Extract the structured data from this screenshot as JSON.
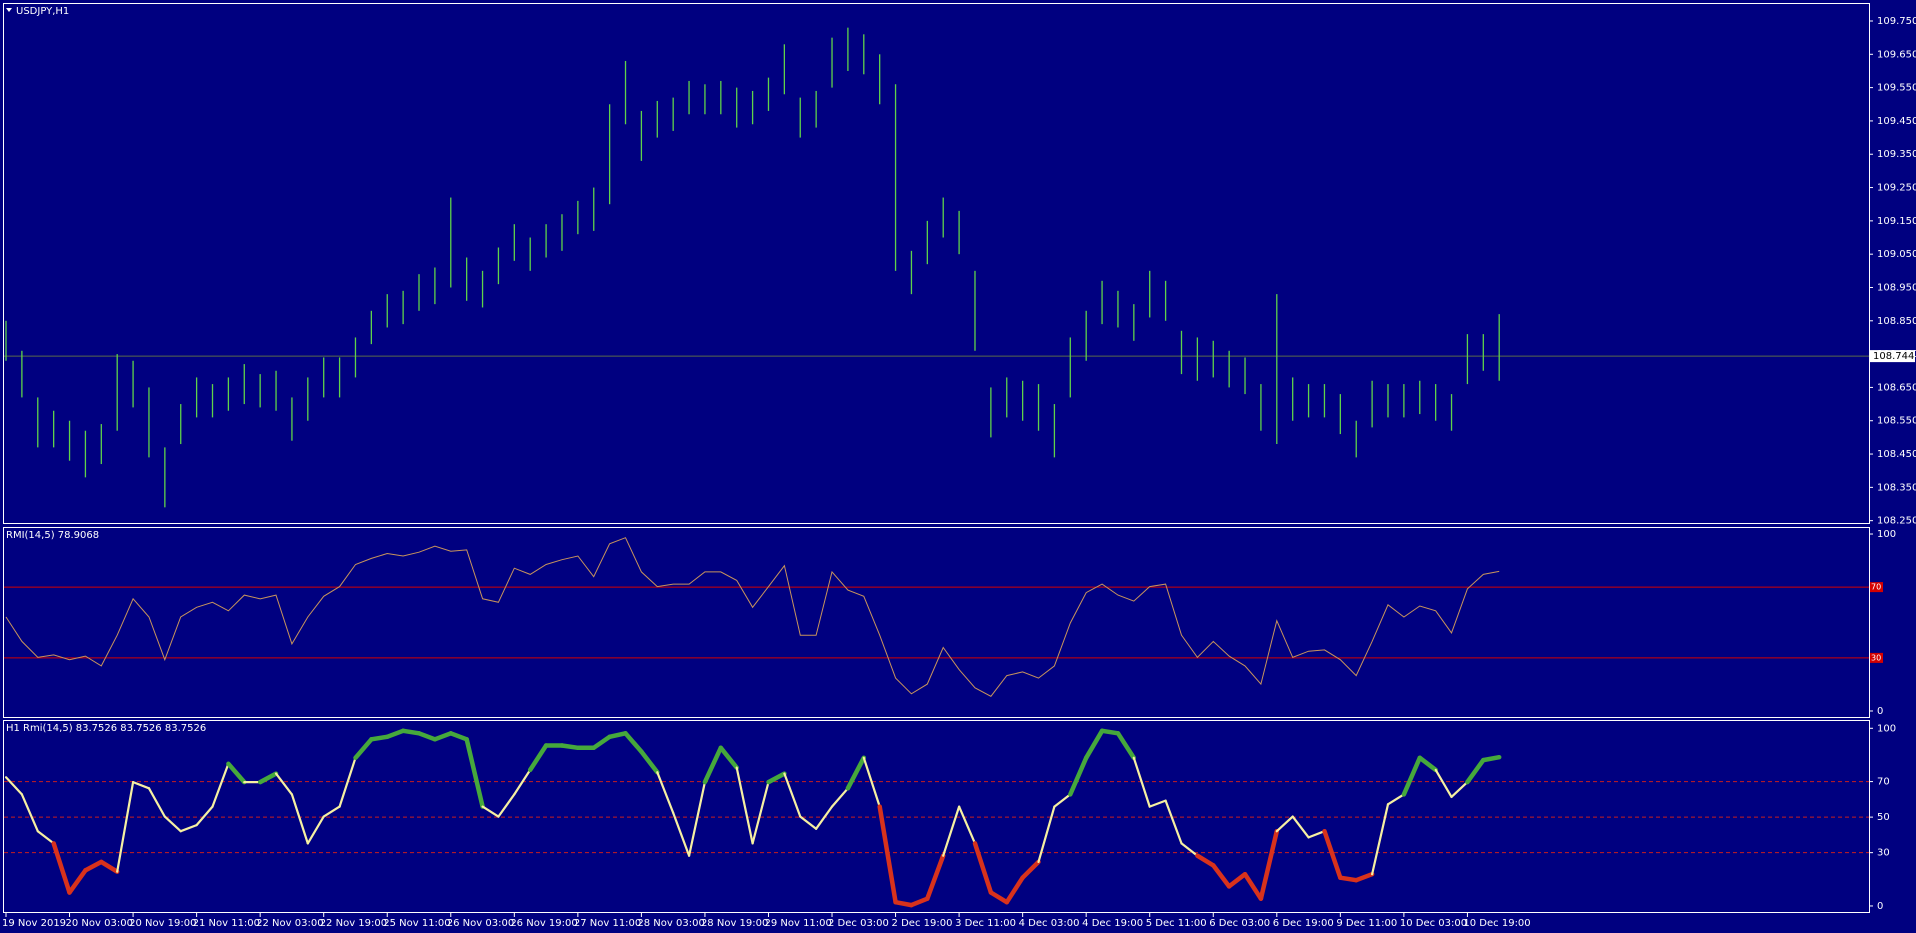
{
  "chart_data": [
    {
      "type": "ohlc",
      "title": "USDJPY,H1",
      "color": "#5fd34a",
      "high": [
        108.85,
        108.76,
        108.62,
        108.58,
        108.55,
        108.52,
        108.54,
        108.75,
        108.73,
        108.65,
        108.47,
        108.6,
        108.68,
        108.66,
        108.68,
        108.72,
        108.69,
        108.7,
        108.62,
        108.68,
        108.74,
        108.74,
        108.8,
        108.88,
        108.93,
        108.94,
        108.99,
        109.01,
        109.22,
        109.04,
        109.0,
        109.07,
        109.14,
        109.1,
        109.14,
        109.17,
        109.21,
        109.25,
        109.5,
        109.63,
        109.48,
        109.51,
        109.52,
        109.57,
        109.56,
        109.57,
        109.55,
        109.54,
        109.58,
        109.68,
        109.52,
        109.54,
        109.7,
        109.73,
        109.71,
        109.65,
        109.56,
        109.06,
        109.15,
        109.22,
        109.18,
        109.0,
        108.65,
        108.68,
        108.67,
        108.66,
        108.6,
        108.8,
        108.88,
        108.97,
        108.94,
        108.9,
        109.0,
        108.97,
        108.82,
        108.8,
        108.79,
        108.76,
        108.74,
        108.66,
        108.93,
        108.68,
        108.66,
        108.66,
        108.63,
        108.55,
        108.67,
        108.66,
        108.66,
        108.67,
        108.66,
        108.63,
        108.81,
        108.81,
        108.87
      ],
      "low": [
        108.73,
        108.62,
        108.47,
        108.47,
        108.43,
        108.38,
        108.42,
        108.52,
        108.59,
        108.44,
        108.29,
        108.48,
        108.56,
        108.56,
        108.58,
        108.6,
        108.59,
        108.58,
        108.49,
        108.55,
        108.62,
        108.62,
        108.68,
        108.78,
        108.83,
        108.84,
        108.88,
        108.9,
        108.95,
        108.91,
        108.89,
        108.96,
        109.03,
        109.0,
        109.04,
        109.06,
        109.11,
        109.12,
        109.2,
        109.44,
        109.33,
        109.4,
        109.42,
        109.47,
        109.47,
        109.47,
        109.43,
        109.44,
        109.48,
        109.53,
        109.4,
        109.43,
        109.55,
        109.6,
        109.59,
        109.5,
        109.0,
        108.93,
        109.02,
        109.1,
        109.05,
        108.76,
        108.5,
        108.56,
        108.55,
        108.52,
        108.44,
        108.62,
        108.73,
        108.84,
        108.83,
        108.79,
        108.86,
        108.85,
        108.69,
        108.67,
        108.68,
        108.65,
        108.63,
        108.52,
        108.48,
        108.55,
        108.56,
        108.56,
        108.51,
        108.44,
        108.53,
        108.56,
        108.56,
        108.57,
        108.55,
        108.52,
        108.66,
        108.7,
        108.67
      ],
      "last_price": {
        "value": 108.744,
        "label": "108.744"
      },
      "last_price_color": "#5a6a4a",
      "ylim": [
        108.243,
        109.801
      ],
      "yticks": [
        {
          "value": 108.25,
          "label": "108.250"
        },
        {
          "value": 108.35,
          "label": "108.350"
        },
        {
          "value": 108.45,
          "label": "108.450"
        },
        {
          "value": 108.55,
          "label": "108.550"
        },
        {
          "value": 108.65,
          "label": "108.650"
        },
        {
          "value": 108.75,
          "label": "108.750"
        },
        {
          "value": 108.85,
          "label": "108.850"
        },
        {
          "value": 108.95,
          "label": "108.950"
        },
        {
          "value": 109.05,
          "label": "109.050"
        },
        {
          "value": 109.15,
          "label": "109.150"
        },
        {
          "value": 109.25,
          "label": "109.250"
        },
        {
          "value": 109.35,
          "label": "109.350"
        },
        {
          "value": 109.45,
          "label": "109.450"
        },
        {
          "value": 109.55,
          "label": "109.550"
        },
        {
          "value": 109.65,
          "label": "109.650"
        },
        {
          "value": 109.75,
          "label": "109.750"
        }
      ],
      "xticks": [
        {
          "value": 0,
          "label": "19 Nov 2019"
        },
        {
          "value": 4,
          "label": "20 Nov 03:00"
        },
        {
          "value": 8,
          "label": "20 Nov 19:00"
        },
        {
          "value": 12,
          "label": "21 Nov 11:00"
        },
        {
          "value": 16,
          "label": "22 Nov 03:00"
        },
        {
          "value": 20,
          "label": "22 Nov 19:00"
        },
        {
          "value": 24,
          "label": "25 Nov 11:00"
        },
        {
          "value": 28,
          "label": "26 Nov 03:00"
        },
        {
          "value": 32,
          "label": "26 Nov 19:00"
        },
        {
          "value": 36,
          "label": "27 Nov 11:00"
        },
        {
          "value": 40,
          "label": "28 Nov 03:00"
        },
        {
          "value": 44,
          "label": "28 Nov 19:00"
        },
        {
          "value": 48,
          "label": "29 Nov 11:00"
        },
        {
          "value": 52,
          "label": "2 Dec 03:00"
        },
        {
          "value": 56,
          "label": "2 Dec 19:00"
        },
        {
          "value": 60,
          "label": "3 Dec 11:00"
        },
        {
          "value": 64,
          "label": "4 Dec 03:00"
        },
        {
          "value": 68,
          "label": "4 Dec 19:00"
        },
        {
          "value": 72,
          "label": "5 Dec 11:00"
        },
        {
          "value": 76,
          "label": "6 Dec 03:00"
        },
        {
          "value": 80,
          "label": "6 Dec 19:00"
        },
        {
          "value": 84,
          "label": "9 Dec 11:00"
        },
        {
          "value": 88,
          "label": "10 Dec 03:00"
        },
        {
          "value": 92,
          "label": "10 Dec 19:00"
        }
      ]
    },
    {
      "type": "line",
      "title": "RMI(14,5) 78.9068",
      "color": "#c8945c",
      "values": [
        53.1,
        39.3,
        30.3,
        31.7,
        29.0,
        31.0,
        25.5,
        42.8,
        63.4,
        53.1,
        29.0,
        53.1,
        58.6,
        61.4,
        56.6,
        65.5,
        63.4,
        65.5,
        37.9,
        53.1,
        64.8,
        70.3,
        82.8,
        86.2,
        89.0,
        87.6,
        89.7,
        93.1,
        90.3,
        91.0,
        63.4,
        61.4,
        80.7,
        77.2,
        82.8,
        85.5,
        87.6,
        75.9,
        94.5,
        97.9,
        78.6,
        70.3,
        71.7,
        71.7,
        78.6,
        78.6,
        73.8,
        58.6,
        70.3,
        82.1,
        42.8,
        42.8,
        78.6,
        68.3,
        64.8,
        42.8,
        18.6,
        9.7,
        15.2,
        35.9,
        23.4,
        13.1,
        8.3,
        20.0,
        22.1,
        18.6,
        25.5,
        49.7,
        66.9,
        71.7,
        65.5,
        62.1,
        70.3,
        71.7,
        42.8,
        30.3,
        39.3,
        31.0,
        25.5,
        15.2,
        51.0,
        30.3,
        33.8,
        34.5,
        29.0,
        20.0,
        39.3,
        60.0,
        53.1,
        59.3,
        56.6,
        44.1,
        69.0,
        77.2,
        78.9
      ],
      "ylim": [
        -3.4,
        103.4
      ],
      "yticks": [
        0,
        100
      ],
      "levels": [
        70,
        30
      ],
      "level_color": "#d40000",
      "level_labels_boxed": true
    },
    {
      "type": "colored_line",
      "title": "H1 Rmi(14,5) 83.7526 83.7526 83.7526",
      "values": [
        72.4,
        62.8,
        42.1,
        35.2,
        7.6,
        20.0,
        24.8,
        19.3,
        69.7,
        66.2,
        50.3,
        42.1,
        45.5,
        55.9,
        80.0,
        69.7,
        69.7,
        74.5,
        62.8,
        35.2,
        50.3,
        55.9,
        83.4,
        93.8,
        95.2,
        98.6,
        97.2,
        93.8,
        97.2,
        93.8,
        55.9,
        50.3,
        62.8,
        76.6,
        90.3,
        90.3,
        89.0,
        89.0,
        95.2,
        97.2,
        86.9,
        75.2,
        52.4,
        28.3,
        69.7,
        89.0,
        77.9,
        35.2,
        69.7,
        74.5,
        50.3,
        43.4,
        55.9,
        66.2,
        83.4,
        55.9,
        2.1,
        0.5,
        4.1,
        28.3,
        55.9,
        35.2,
        7.6,
        2.1,
        15.9,
        24.8,
        55.9,
        62.8,
        83.4,
        98.6,
        97.2,
        83.4,
        55.9,
        59.3,
        35.2,
        28.3,
        22.8,
        11.0,
        17.9,
        4.1,
        42.1,
        50.3,
        38.6,
        42.1,
        15.9,
        14.5,
        17.9,
        57.2,
        62.8,
        83.4,
        76.6,
        61.4,
        69.7,
        82.1,
        83.75
      ],
      "ylim": [
        -3.4,
        104.1
      ],
      "yticks": [
        0,
        30,
        50,
        70,
        100
      ],
      "levels": [
        70,
        50,
        30
      ],
      "level_color": "#c81e1e",
      "level_dash": true,
      "upper_color": "#46a83c",
      "middle_color": "#f6f0a2",
      "lower_color": "#d8321c"
    }
  ]
}
